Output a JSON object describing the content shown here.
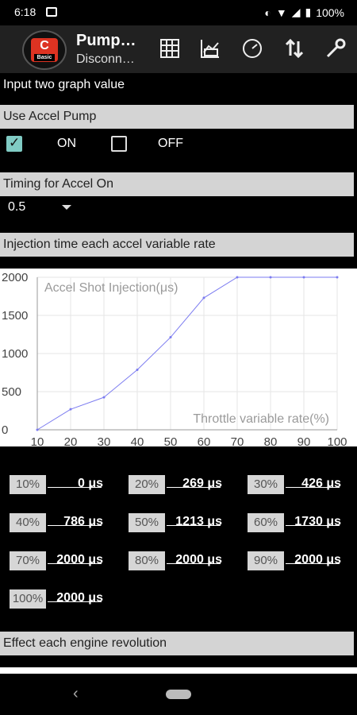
{
  "status_bar": {
    "time": "6:18",
    "battery": "100%",
    "icons": [
      "image-icon",
      "data-saver-icon",
      "wifi-icon",
      "signal-icon",
      "battery-icon"
    ]
  },
  "app_bar": {
    "title": "Pump…",
    "subtitle": "Disconn…",
    "logo_letter": "C",
    "logo_text": "Basic",
    "actions": [
      "table-icon",
      "graph-icon",
      "gauge-icon",
      "sort-icon",
      "wrench-icon"
    ]
  },
  "header_text": "Input two graph value",
  "accel_pump": {
    "section_label": "Use Accel Pump",
    "on_label": "ON",
    "off_label": "OFF",
    "on_checked": true,
    "off_checked": false
  },
  "timing": {
    "section_label": "Timing for Accel On",
    "value": "0.5"
  },
  "injection": {
    "section_label": "Injection time each accel variable rate"
  },
  "chart_data": {
    "type": "line",
    "title": "Accel Shot Injection(μs)",
    "xlabel": "Throttle variable rate(%)",
    "x": [
      10,
      20,
      30,
      40,
      50,
      60,
      70,
      80,
      90,
      100
    ],
    "series": [
      {
        "values": [
          0,
          269,
          426,
          786,
          1213,
          1730,
          2000,
          2000,
          2000,
          2000
        ]
      }
    ],
    "xlim": [
      10,
      100
    ],
    "ylim": [
      0,
      2000
    ],
    "x_ticks": [
      "10",
      "20",
      "30",
      "40",
      "50",
      "60",
      "70",
      "80",
      "90",
      "100"
    ],
    "y_ticks": [
      "0",
      "500",
      "1000",
      "1500",
      "2000"
    ],
    "line_color": "#7b7bf0",
    "grid": true
  },
  "values": [
    {
      "label": "10%",
      "value": "0 μs"
    },
    {
      "label": "20%",
      "value": "269 μs"
    },
    {
      "label": "30%",
      "value": "426 μs"
    },
    {
      "label": "40%",
      "value": "786 μs"
    },
    {
      "label": "50%",
      "value": "1213 μs"
    },
    {
      "label": "60%",
      "value": "1730 μs"
    },
    {
      "label": "70%",
      "value": "2000 μs"
    },
    {
      "label": "80%",
      "value": "2000 μs"
    },
    {
      "label": "90%",
      "value": "2000 μs"
    },
    {
      "label": "100%",
      "value": "2000 μs"
    }
  ],
  "effect": {
    "section_label": "Effect each engine revolution"
  },
  "colors": {
    "background": "#000000",
    "section_bar": "#d4d4d4",
    "checkbox_checked": "#80cbc4"
  }
}
